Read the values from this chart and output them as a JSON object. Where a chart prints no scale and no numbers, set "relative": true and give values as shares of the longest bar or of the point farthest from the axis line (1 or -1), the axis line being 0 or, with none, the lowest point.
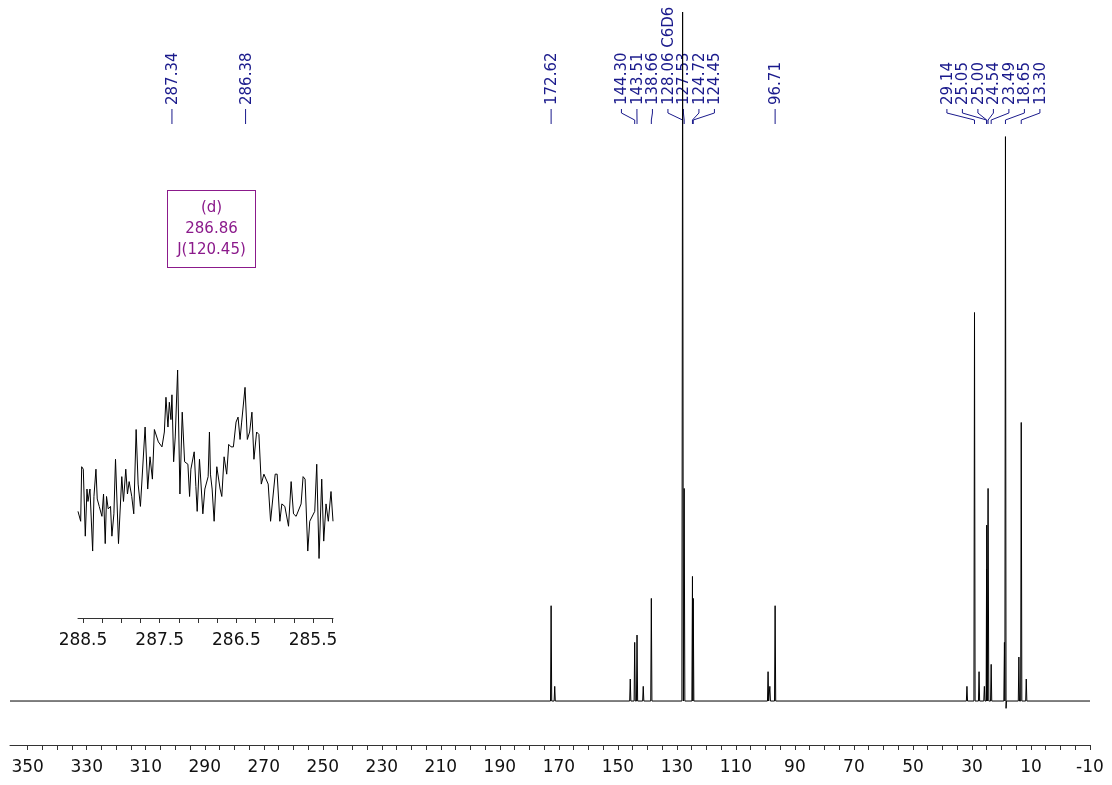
{
  "chart_data": [
    {
      "type": "line",
      "relative": true,
      "xlim": [
        356,
        -10
      ],
      "xticks": [
        350,
        {
          "value": 345,
          "label": null
        },
        {
          "value": 340,
          "label": null
        },
        {
          "value": 335,
          "label": null
        },
        330,
        {
          "value": 325,
          "label": null
        },
        {
          "value": 320,
          "label": null
        },
        {
          "value": 315,
          "label": null
        },
        310,
        {
          "value": 305,
          "label": null
        },
        {
          "value": 300,
          "label": null
        },
        {
          "value": 295,
          "label": null
        },
        290,
        {
          "value": 285,
          "label": null
        },
        {
          "value": 280,
          "label": null
        },
        {
          "value": 275,
          "label": null
        },
        270,
        {
          "value": 265,
          "label": null
        },
        {
          "value": 260,
          "label": null
        },
        {
          "value": 255,
          "label": null
        },
        250,
        {
          "value": 245,
          "label": null
        },
        {
          "value": 240,
          "label": null
        },
        {
          "value": 235,
          "label": null
        },
        230,
        {
          "value": 225,
          "label": null
        },
        {
          "value": 220,
          "label": null
        },
        {
          "value": 215,
          "label": null
        },
        210,
        {
          "value": 205,
          "label": null
        },
        {
          "value": 200,
          "label": null
        },
        {
          "value": 195,
          "label": null
        },
        190,
        {
          "value": 185,
          "label": null
        },
        {
          "value": 180,
          "label": null
        },
        {
          "value": 175,
          "label": null
        },
        170,
        {
          "value": 165,
          "label": null
        },
        {
          "value": 160,
          "label": null
        },
        {
          "value": 155,
          "label": null
        },
        150,
        {
          "value": 145,
          "label": null
        },
        {
          "value": 140,
          "label": null
        },
        {
          "value": 135,
          "label": null
        },
        130,
        {
          "value": 125,
          "label": null
        },
        {
          "value": 120,
          "label": null
        },
        {
          "value": 115,
          "label": null
        },
        110,
        {
          "value": 105,
          "label": null
        },
        {
          "value": 100,
          "label": null
        },
        {
          "value": 95,
          "label": null
        },
        90,
        {
          "value": 85,
          "label": null
        },
        {
          "value": 80,
          "label": null
        },
        {
          "value": 75,
          "label": null
        },
        70,
        {
          "value": 65,
          "label": null
        },
        {
          "value": 60,
          "label": null
        },
        {
          "value": 55,
          "label": null
        },
        50,
        {
          "value": 45,
          "label": null
        },
        {
          "value": 40,
          "label": null
        },
        {
          "value": 35,
          "label": null
        },
        30,
        {
          "value": 25,
          "label": null
        },
        {
          "value": 20,
          "label": null
        },
        {
          "value": 15,
          "label": null
        },
        10,
        {
          "value": 5,
          "label": null
        },
        {
          "value": 0,
          "label": null
        },
        {
          "value": -5,
          "label": null
        },
        -10
      ],
      "x": [
        356,
        172.82,
        172.62,
        172.42,
        171.6,
        171.4,
        171.2,
        146.0,
        145.8,
        145.6,
        144.5,
        144.3,
        144.1,
        143.7,
        143.51,
        143.3,
        141.6,
        141.4,
        141.2,
        138.86,
        138.66,
        138.46,
        128.3,
        128.06,
        127.8,
        127.53,
        127.3,
        124.92,
        124.72,
        124.6,
        124.45,
        124.25,
        99.3,
        99.1,
        98.9,
        98.7,
        98.5,
        98.3,
        96.91,
        96.71,
        96.51,
        31.9,
        31.7,
        31.5,
        29.34,
        29.14,
        28.94,
        27.8,
        27.6,
        27.4,
        26.0,
        25.8,
        25.6,
        25.2,
        25.05,
        25.025,
        25.0,
        24.8,
        24.54,
        24.3,
        23.7,
        23.49,
        23.3,
        19.2,
        19.0,
        18.85,
        18.65,
        18.45,
        18.3,
        14.3,
        14.1,
        13.9,
        13.5,
        13.3,
        13.1,
        11.8,
        11.6,
        11.4,
        -10
      ],
      "series": [
        {
          "color": "#000000",
          "values": [
            0.06,
            0.06,
            0.19,
            0.06,
            0.06,
            0.08,
            0.06,
            0.06,
            0.09,
            0.06,
            0.06,
            0.14,
            0.06,
            0.06,
            0.15,
            0.06,
            0.06,
            0.08,
            0.06,
            0.06,
            0.2,
            0.06,
            0.06,
            1,
            0.06,
            0.35,
            0.06,
            0.06,
            0.23,
            0.06,
            0.2,
            0.06,
            0.06,
            0.1,
            0.06,
            0.06,
            0.08,
            0.06,
            0.06,
            0.19,
            0.06,
            0.06,
            0.08,
            0.06,
            0.06,
            0.59,
            0.06,
            0.06,
            0.1,
            0.06,
            0.06,
            0.08,
            0.06,
            0.06,
            0.24,
            0.06,
            0.3,
            0.06,
            0.35,
            0.06,
            0.06,
            0.11,
            0.06,
            0.06,
            0.14,
            0.06,
            0.83,
            0.05,
            0.06,
            0.06,
            0.12,
            0.06,
            0.06,
            0.44,
            0.06,
            0.06,
            0.09,
            0.06,
            0.06
          ]
        }
      ],
      "annotations": [
        {
          "text": "172.62",
          "x": 172.62
        },
        {
          "text": "144.30",
          "x": 144.3
        },
        {
          "text": "143.51",
          "x": 143.51
        },
        {
          "text": "138.66",
          "x": 138.66
        },
        {
          "text": "128.06 C6D6",
          "x": 128.06
        },
        {
          "text": "127.53",
          "x": 127.53
        },
        {
          "text": "124.72",
          "x": 124.72
        },
        {
          "text": "124.45",
          "x": 124.45
        },
        {
          "text": "96.71",
          "x": 96.71
        },
        {
          "text": "29.14",
          "x": 29.14
        },
        {
          "text": "25.05",
          "x": 25.05
        },
        {
          "text": "25.00",
          "x": 25.0
        },
        {
          "text": "24.54",
          "x": 24.54
        },
        {
          "text": "23.49",
          "x": 23.49
        },
        {
          "text": "18.65",
          "x": 18.65
        },
        {
          "text": "13.30",
          "x": 13.3
        }
      ]
    },
    {
      "type": "line",
      "relative": true,
      "xlim": [
        288.565,
        285.24
      ],
      "xticks": [
        288.5,
        {
          "value": 288.25,
          "label": null
        },
        {
          "value": 288.0,
          "label": null
        },
        {
          "value": 287.75,
          "label": null
        },
        287.5,
        {
          "value": 287.25,
          "label": null
        },
        {
          "value": 287.0,
          "label": null
        },
        {
          "value": 286.75,
          "label": null
        },
        286.5,
        {
          "value": 286.25,
          "label": null
        },
        {
          "value": 286.0,
          "label": null
        },
        {
          "value": 285.75,
          "label": null
        },
        285.5,
        {
          "value": 285.25,
          "label": null
        }
      ],
      "x": [
        288.565,
        288.53,
        288.517,
        288.496,
        288.47,
        288.448,
        288.435,
        288.409,
        288.374,
        288.357,
        288.331,
        288.314,
        288.288,
        288.253,
        288.232,
        288.21,
        288.193,
        288.171,
        288.141,
        288.123,
        288.097,
        288.076,
        288.037,
        287.994,
        287.972,
        287.942,
        287.92,
        287.898,
        287.864,
        287.838,
        287.807,
        287.781,
        287.751,
        287.69,
        287.656,
        287.626,
        287.595,
        287.569,
        287.517,
        287.47,
        287.439,
        287.418,
        287.392,
        287.374,
        287.353,
        287.34,
        287.318,
        287.297,
        287.266,
        287.236,
        287.206,
        287.175,
        287.132,
        287.11,
        287.093,
        287.05,
        287.028,
        287.011,
        286.981,
        286.937,
        286.911,
        286.868,
        286.851,
        286.838,
        286.816,
        286.79,
        286.755,
        286.712,
        286.69,
        286.66,
        286.626,
        286.6,
        286.569,
        286.539,
        286.504,
        286.478,
        286.452,
        286.431,
        286.387,
        286.357,
        286.327,
        286.297,
        286.271,
        286.236,
        286.206,
        286.175,
        286.141,
        286.085,
        286.054,
        285.994,
        285.968,
        285.933,
        285.907,
        285.868,
        285.82,
        285.786,
        285.755,
        285.721,
        285.656,
        285.63,
        285.604,
        285.569,
        285.543,
        285.478,
        285.452,
        285.422,
        285.387,
        285.361,
        285.331,
        285.301,
        285.266,
        285.24
      ],
      "series": [
        {
          "color": "#000000",
          "values": [
            0.43,
            0.39,
            0.61,
            0.6,
            0.33,
            0.52,
            0.47,
            0.52,
            0.27,
            0.49,
            0.6,
            0.48,
            0.45,
            0.41,
            0.5,
            0.3,
            0.49,
            0.44,
            0.45,
            0.33,
            0.42,
            0.64,
            0.3,
            0.57,
            0.47,
            0.6,
            0.5,
            0.55,
            0.49,
            0.42,
            0.76,
            0.54,
            0.45,
            0.77,
            0.52,
            0.65,
            0.56,
            0.76,
            0.71,
            0.69,
            0.75,
            0.89,
            0.77,
            0.87,
            0.8,
            0.9,
            0.63,
            0.73,
            1.0,
            0.5,
            0.83,
            0.63,
            0.62,
            0.49,
            0.6,
            0.67,
            0.53,
            0.43,
            0.64,
            0.42,
            0.52,
            0.57,
            0.75,
            0.58,
            0.52,
            0.39,
            0.61,
            0.52,
            0.49,
            0.65,
            0.58,
            0.7,
            0.69,
            0.69,
            0.79,
            0.81,
            0.72,
            0.79,
            0.93,
            0.72,
            0.75,
            0.83,
            0.64,
            0.75,
            0.74,
            0.54,
            0.58,
            0.54,
            0.39,
            0.58,
            0.58,
            0.39,
            0.46,
            0.45,
            0.37,
            0.55,
            0.42,
            0.41,
            0.46,
            0.57,
            0.56,
            0.27,
            0.39,
            0.43,
            0.62,
            0.24,
            0.56,
            0.31,
            0.46,
            0.39,
            0.51,
            0.39
          ]
        }
      ],
      "annotations": [
        {
          "text": "287.34",
          "x": 287.34
        },
        {
          "text": "286.38",
          "x": 286.38
        },
        "(d)\n286.86\nJ(120.45)"
      ]
    }
  ]
}
